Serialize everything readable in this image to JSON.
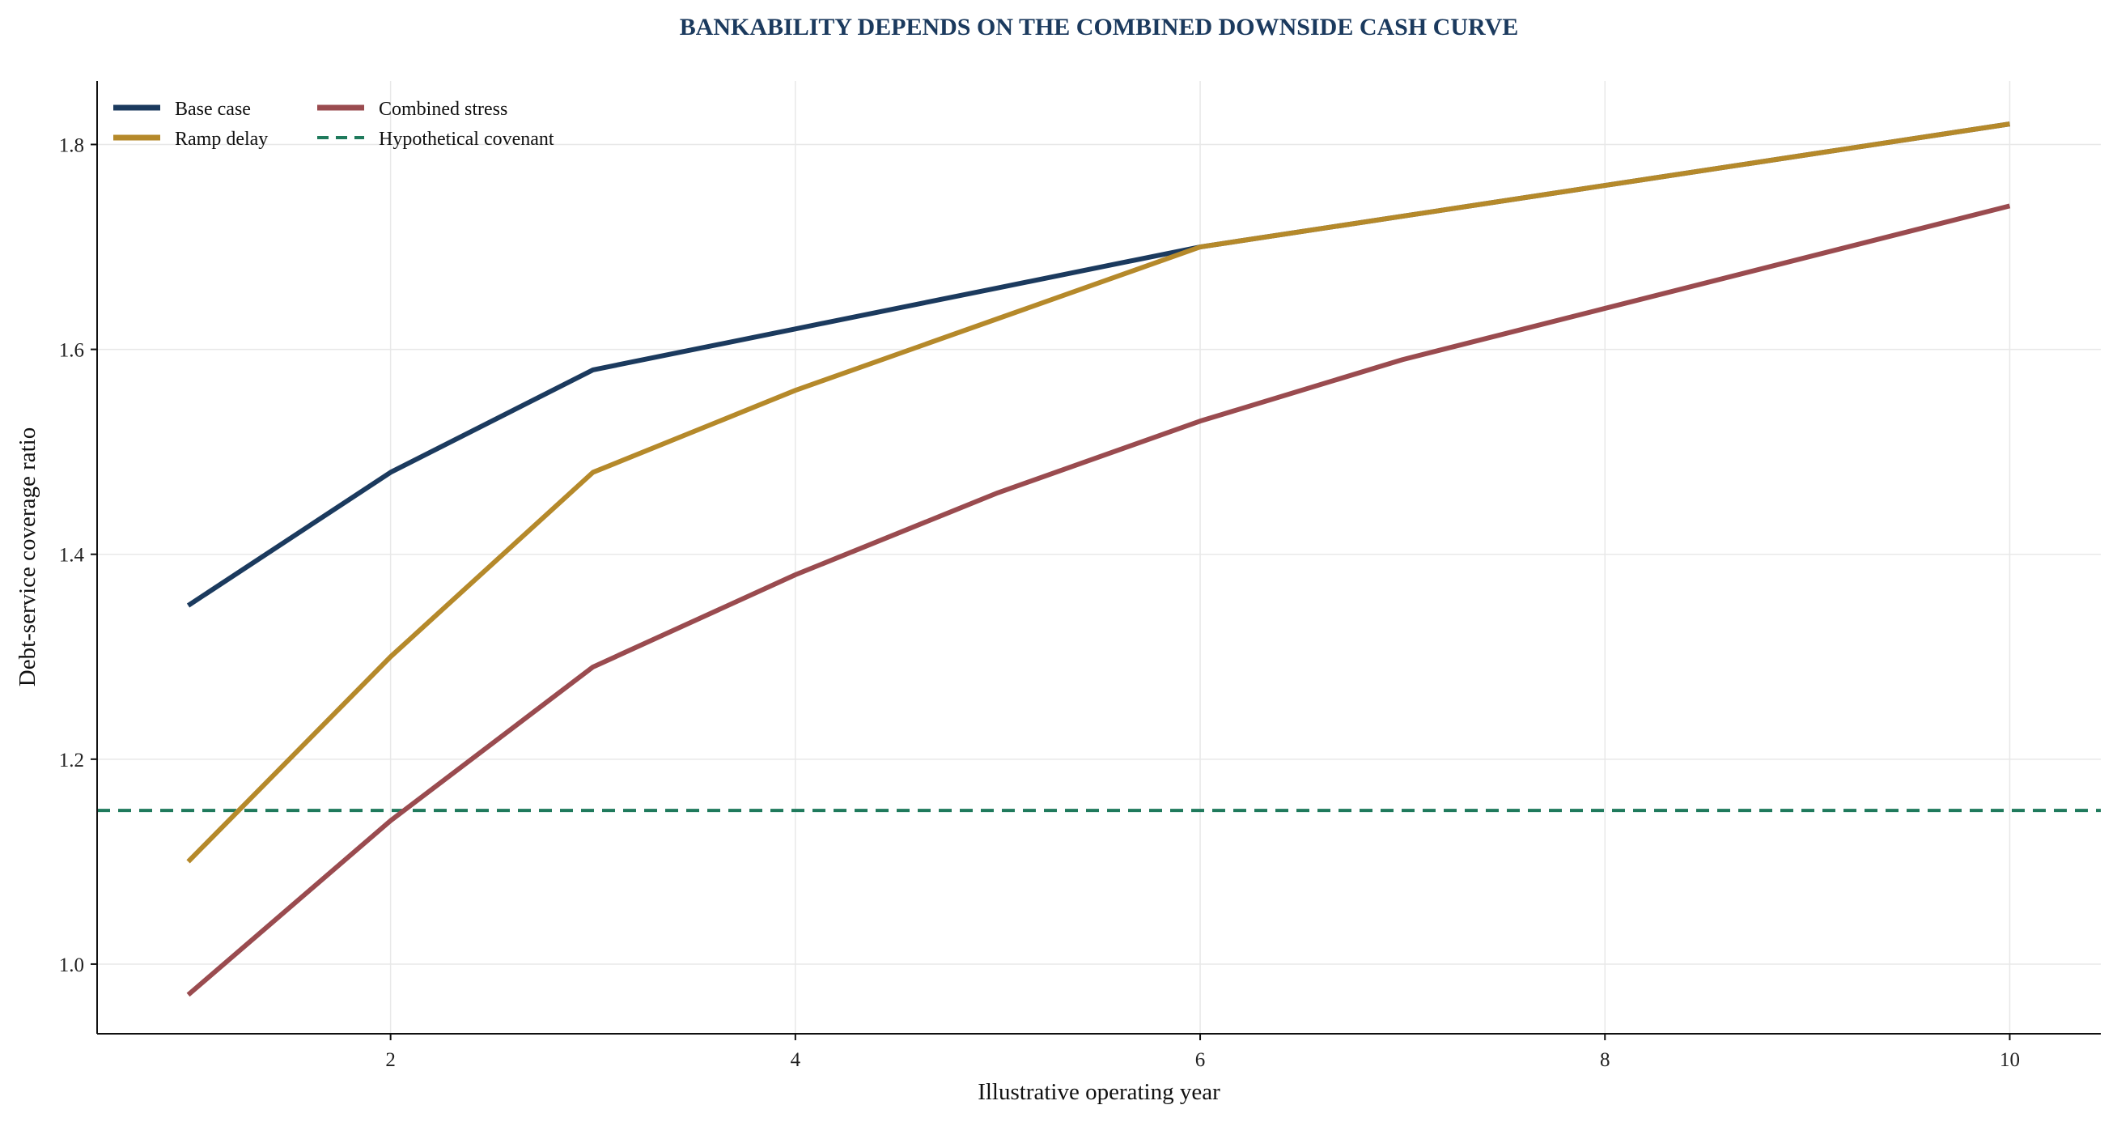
{
  "chart_data": {
    "type": "line",
    "title": "BANKABILITY DEPENDS ON THE COMBINED DOWNSIDE CASH CURVE",
    "xlabel": "Illustrative operating year",
    "ylabel": "Debt-service coverage ratio",
    "x": [
      1,
      2,
      3,
      4,
      5,
      6,
      7,
      8,
      9,
      10
    ],
    "xlim": [
      0.55,
      10.45
    ],
    "ylim": [
      0.932,
      1.862
    ],
    "xticks": [
      2,
      4,
      6,
      8,
      10
    ],
    "yticks": [
      1.0,
      1.2,
      1.4,
      1.6,
      1.8
    ],
    "xtick_labels": [
      "2",
      "4",
      "6",
      "8",
      "10"
    ],
    "ytick_labels": [
      "1.0",
      "1.2",
      "1.4",
      "1.6",
      "1.8"
    ],
    "grid": true,
    "legend_position": "top-left",
    "series": [
      {
        "name": "Base case",
        "color": "#1b3a5e",
        "style": "solid",
        "values": [
          1.35,
          1.48,
          1.58,
          1.62,
          1.66,
          1.7,
          1.73,
          1.76,
          1.79,
          1.82
        ]
      },
      {
        "name": "Ramp delay",
        "color": "#b5892a",
        "style": "solid",
        "values": [
          1.1,
          1.3,
          1.48,
          1.56,
          1.63,
          1.7,
          1.73,
          1.76,
          1.79,
          1.82
        ]
      },
      {
        "name": "Combined stress",
        "color": "#9a4b4f",
        "style": "solid",
        "values": [
          0.97,
          1.14,
          1.29,
          1.38,
          1.46,
          1.53,
          1.59,
          1.64,
          1.69,
          1.74
        ]
      }
    ],
    "reference_lines": [
      {
        "name": "Hypothetical covenant",
        "color": "#1f7a5c",
        "style": "dashed",
        "y": 1.15
      }
    ]
  }
}
